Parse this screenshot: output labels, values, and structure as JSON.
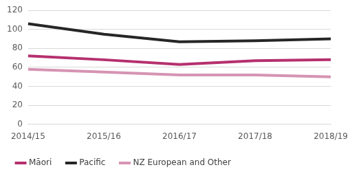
{
  "chart_data": {
    "type": "line",
    "categories": [
      "2014/15",
      "2015/16",
      "2016/17",
      "2017/18",
      "2018/19"
    ],
    "series": [
      {
        "name": "Māori",
        "color": "#b5306e",
        "values": [
          72,
          68,
          63,
          67,
          68
        ]
      },
      {
        "name": "Pacific",
        "color": "#262626",
        "values": [
          106,
          95,
          87,
          88,
          90
        ]
      },
      {
        "name": "NZ European and Other",
        "color": "#d693b3",
        "values": [
          58,
          55,
          52,
          52,
          50
        ]
      }
    ],
    "ylim": [
      0,
      120
    ],
    "yticks": [
      0,
      20,
      40,
      60,
      80,
      100,
      120
    ],
    "grid": true,
    "legend": "bottom"
  }
}
